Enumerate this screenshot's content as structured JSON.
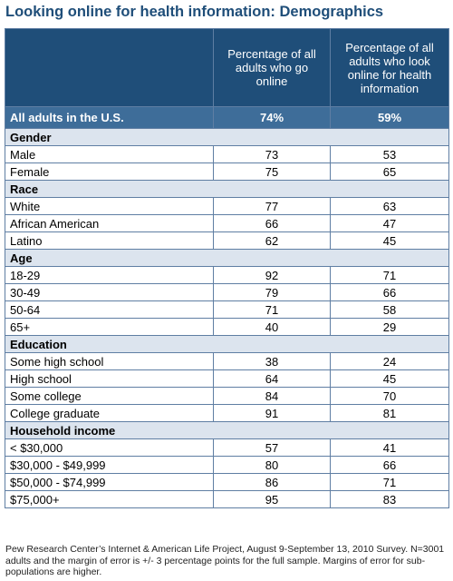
{
  "title": "Looking online for health information: Demographics",
  "header": {
    "col1": "",
    "col2": "Percentage of all adults who go online",
    "col3": "Percentage of all adults who look online for health information"
  },
  "all_adults": {
    "label": "All adults in the U.S.",
    "online": "74%",
    "health": "59%"
  },
  "sections": [
    {
      "title": "Gender",
      "rows": [
        {
          "label": "Male",
          "online": "73",
          "health": "53"
        },
        {
          "label": "Female",
          "online": "75",
          "health": "65"
        }
      ]
    },
    {
      "title": "Race",
      "rows": [
        {
          "label": "White",
          "online": "77",
          "health": "63"
        },
        {
          "label": "African American",
          "online": "66",
          "health": "47"
        },
        {
          "label": "Latino",
          "online": "62",
          "health": "45"
        }
      ]
    },
    {
      "title": "Age",
      "rows": [
        {
          "label": "18-29",
          "online": "92",
          "health": "71"
        },
        {
          "label": "30-49",
          "online": "79",
          "health": "66"
        },
        {
          "label": "50-64",
          "online": "71",
          "health": "58"
        },
        {
          "label": "65+",
          "online": "40",
          "health": "29"
        }
      ]
    },
    {
      "title": "Education",
      "rows": [
        {
          "label": "Some high school",
          "online": "38",
          "health": "24"
        },
        {
          "label": "High school",
          "online": "64",
          "health": "45"
        },
        {
          "label": "Some college",
          "online": "84",
          "health": "70"
        },
        {
          "label": "College graduate",
          "online": "91",
          "health": "81"
        }
      ]
    },
    {
      "title": "Household income",
      "rows": [
        {
          "label": "< $30,000",
          "online": "57",
          "health": "41"
        },
        {
          "label": "$30,000 - $49,999",
          "online": "80",
          "health": "66"
        },
        {
          "label": "$50,000 - $74,999",
          "online": "86",
          "health": "71"
        },
        {
          "label": "$75,000+",
          "online": "95",
          "health": "83"
        }
      ]
    }
  ],
  "footer": "Pew Research Center’s Internet & American Life Project, August 9-September 13, 2010 Survey. N=3001 adults and the margin of error is +/- 3 percentage points for the full sample. Margins of error for sub-populations are higher."
}
